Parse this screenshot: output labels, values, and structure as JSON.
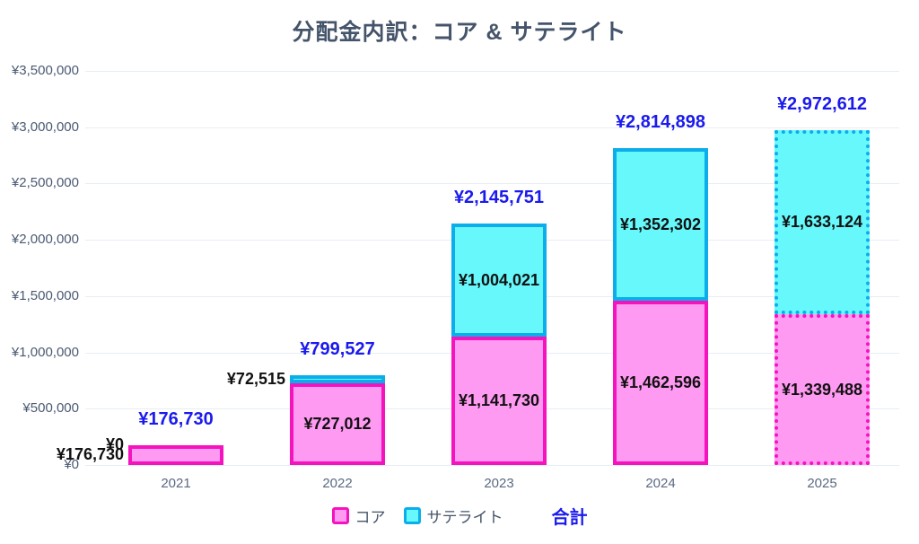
{
  "title": "分配金内訳：コア & サテライト",
  "chart_data": {
    "type": "bar",
    "stacked": true,
    "grid": true,
    "legend_position": "bottom",
    "categories": [
      "2021",
      "2022",
      "2023",
      "2024",
      "2025"
    ],
    "series": [
      {
        "name": "コア",
        "fill_color": "#FF9AF2",
        "border_color": "#F513BE",
        "values": [
          176730,
          727012,
          1141730,
          1462596,
          1339488
        ],
        "labels": [
          "¥176,730",
          "¥727,012",
          "¥1,141,730",
          "¥1,462,596",
          "¥1,339,488"
        ]
      },
      {
        "name": "サテライト",
        "fill_color": "#66F8FB",
        "border_color": "#0BAEEB",
        "values": [
          0,
          72515,
          1004021,
          1352302,
          1633124
        ],
        "labels": [
          "¥0",
          "¥72,515",
          "¥1,004,021",
          "¥1,352,302",
          "¥1,633,124"
        ]
      }
    ],
    "totals": {
      "name": "合計",
      "color": "#1A1AEE",
      "values": [
        176730,
        799527,
        2145751,
        2814898,
        2972612
      ],
      "labels": [
        "¥176,730",
        "¥799,527",
        "¥2,145,751",
        "¥2,814,898",
        "¥2,972,612"
      ]
    },
    "last_category_projected": true,
    "ylim": [
      0,
      3500000
    ],
    "yticks": [
      {
        "value": 3500000,
        "label": "¥3,500,000"
      },
      {
        "value": 3000000,
        "label": "¥3,000,000"
      },
      {
        "value": 2500000,
        "label": "¥2,500,000"
      },
      {
        "value": 2000000,
        "label": "¥2,000,000"
      },
      {
        "value": 1500000,
        "label": "¥1,500,000"
      },
      {
        "value": 1000000,
        "label": "¥1,000,000"
      },
      {
        "value": 500000,
        "label": "¥500,000"
      },
      {
        "value": 0,
        "label": "¥0"
      }
    ]
  }
}
